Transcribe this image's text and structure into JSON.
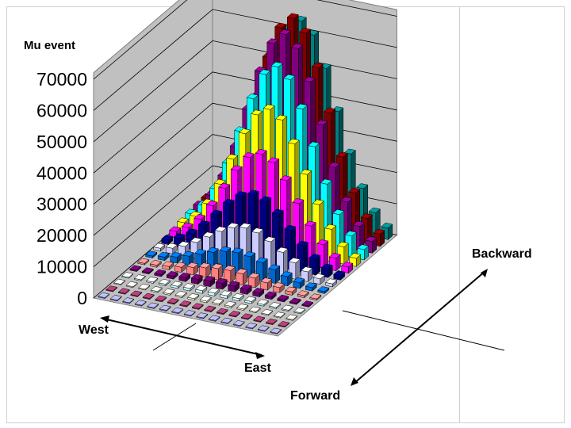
{
  "chart_data": {
    "type": "bar3d",
    "zlabel": "Mu event",
    "zlim": [
      0,
      70000
    ],
    "zticks": [
      "70000",
      "60000",
      "50000",
      "40000",
      "30000",
      "20000",
      "10000",
      "0"
    ],
    "rows": 15,
    "cols": 15,
    "peak": 67000,
    "peak_row": 13,
    "peak_col": 7,
    "series_colors": [
      "#9999ff",
      "#993366",
      "#ffffcc",
      "#ccffff",
      "#660066",
      "#ff8080",
      "#0066cc",
      "#ccccff",
      "#000080",
      "#ff00ff",
      "#ffff00",
      "#00ffff",
      "#800080",
      "#800000",
      "#008080",
      "#0000ff"
    ],
    "grid": true
  },
  "direction_labels": {
    "west": "West",
    "east": "East",
    "forward": "Forward",
    "backward": "Backward"
  }
}
